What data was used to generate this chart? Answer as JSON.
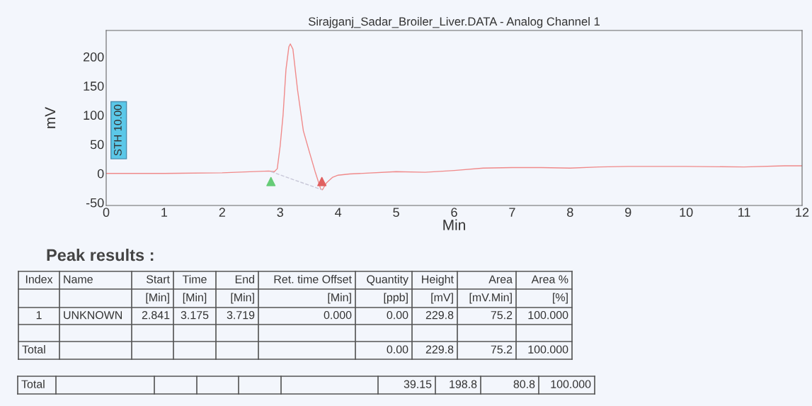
{
  "chart_data": {
    "type": "line",
    "title": "Sirajganj_Sadar_Broiler_Liver.DATA - Analog Channel 1",
    "xlabel": "Min",
    "ylabel": "mV",
    "xlim": [
      0,
      12
    ],
    "xticks": [
      0,
      1,
      2,
      3,
      4,
      5,
      6,
      7,
      8,
      9,
      10,
      11,
      12
    ],
    "ylim": [
      -55,
      245
    ],
    "yticks": [
      -50,
      0,
      50,
      100,
      150,
      200
    ],
    "grid": false,
    "series": [
      {
        "color": "#f08a8a",
        "line_style": "solid",
        "x": [
          0,
          1,
          2,
          2.8,
          2.9,
          2.95,
          3.0,
          3.05,
          3.1,
          3.15,
          3.175,
          3.22,
          3.3,
          3.4,
          3.5,
          3.6,
          3.7,
          3.73,
          3.8,
          3.9,
          4.0,
          4.2,
          5.0,
          5.5,
          6.0,
          6.5,
          7.0,
          7.5,
          8.0,
          8.5,
          9.0,
          10.0,
          11.0,
          11.7,
          12.0
        ],
        "values": [
          0,
          0,
          1,
          4,
          3,
          8,
          47,
          100,
          178,
          217,
          222,
          213,
          143,
          73,
          38,
          4,
          -27,
          -28,
          -16,
          -7,
          -3,
          -1,
          3,
          2,
          5,
          9,
          10,
          10,
          9,
          11,
          12,
          12,
          11,
          13,
          13
        ]
      },
      {
        "type": "line",
        "color": "#c8c8d8",
        "line_style": "dashed",
        "x": [
          2.841,
          3.719
        ],
        "values": [
          3,
          -28
        ]
      },
      {
        "type": "scatter",
        "color": "#66cc77",
        "marker": "triangle",
        "x": [
          2.841
        ],
        "values": [
          -14
        ]
      },
      {
        "type": "scatter",
        "color": "#e06060",
        "marker": "triangle",
        "x": [
          3.719
        ],
        "values": [
          -14
        ]
      }
    ],
    "annotations": [
      "STH 10.00",
      "Peak results :",
      "Index",
      "Name",
      "Start",
      "Time",
      "End",
      "Ret. time Offset",
      "Quantity",
      "Height",
      "Area",
      "Area %",
      "[Min]",
      "[Min]",
      "[Min]",
      "[Min]",
      "[ppb]",
      "[mV]",
      "[mV.Min]",
      "[%]",
      "1",
      "UNKNOWN",
      "2.841",
      "3.175",
      "3.719",
      "0.000",
      "0.00",
      "229.8",
      "75.2",
      "100.000",
      "Total",
      "0.00",
      "229.8",
      "75.2",
      "100.000",
      "Total",
      "39.15",
      "198.8",
      "80.8",
      "100.000"
    ]
  }
}
